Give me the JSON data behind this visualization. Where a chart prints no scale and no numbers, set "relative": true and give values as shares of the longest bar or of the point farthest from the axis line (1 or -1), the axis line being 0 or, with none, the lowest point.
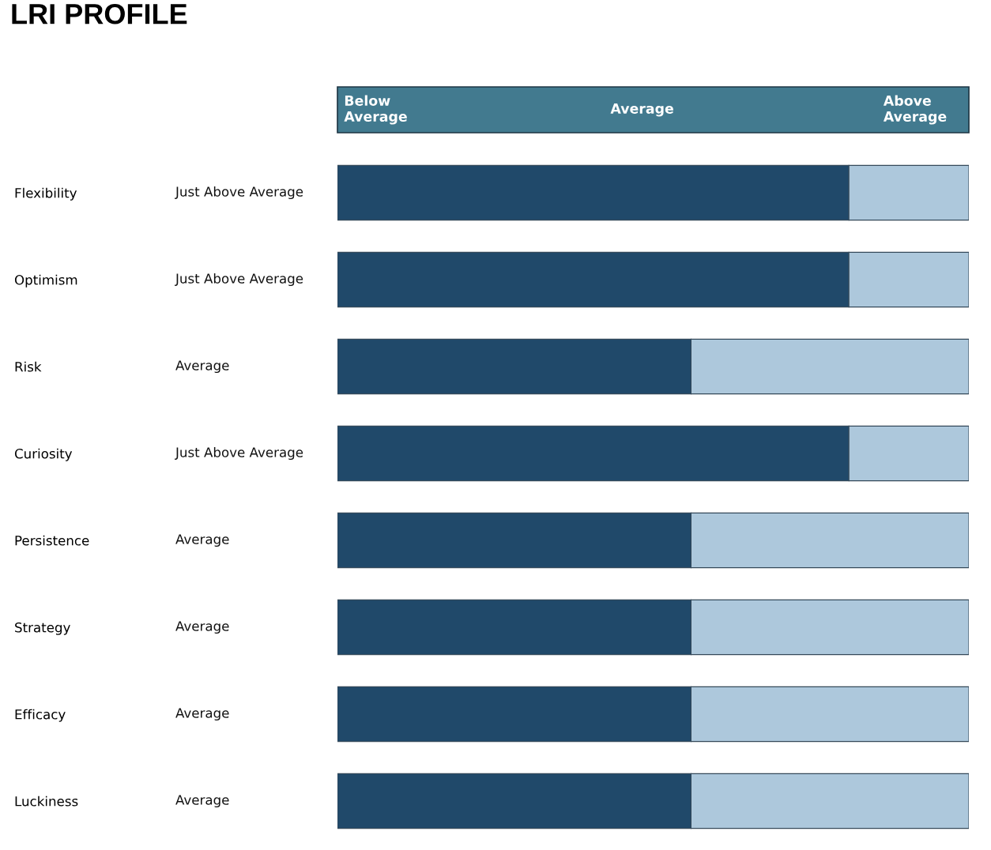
{
  "chart_data": {
    "type": "bar",
    "orientation": "horizontal",
    "stacked": true,
    "relative": true,
    "title": "LRI PROFILE",
    "categories": [
      "Flexibility",
      "Optimism",
      "Risk",
      "Curiosity",
      "Persistence",
      "Strategy",
      "Efficacy",
      "Luckiness"
    ],
    "series": [
      {
        "color": "#20496a",
        "values": [
          0.81,
          0.81,
          0.56,
          0.81,
          0.56,
          0.56,
          0.56,
          0.56
        ]
      },
      {
        "color": "#adc8dc",
        "values": [
          0.19,
          0.19,
          0.44,
          0.19,
          0.44,
          0.44,
          0.44,
          0.44
        ]
      }
    ],
    "annotations": [
      "Below\nAverage",
      "Average",
      "Above\nAverage",
      "Just Above Average",
      "Just Above Average",
      "Average",
      "Just Above Average",
      "Average",
      "Average",
      "Average",
      "Average"
    ],
    "tick_labels": "y",
    "grid": false
  }
}
